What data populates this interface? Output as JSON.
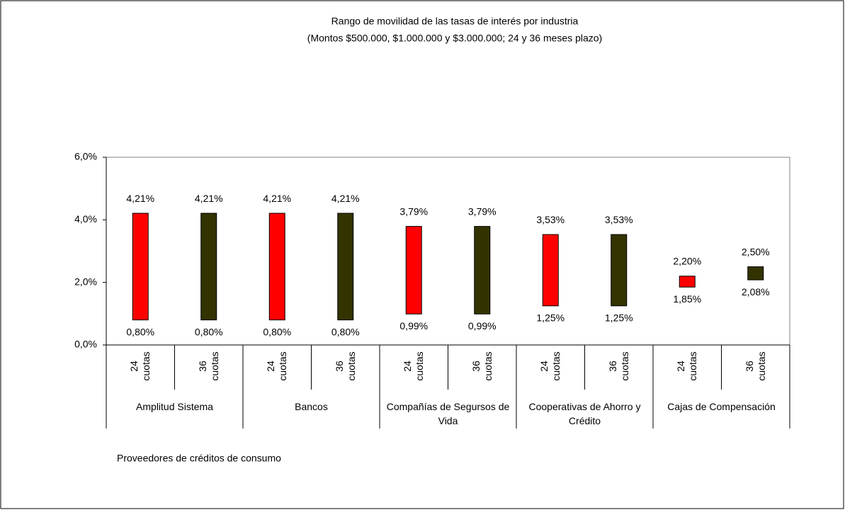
{
  "chart_data": {
    "type": "floating_bar",
    "title": "Rango de movilidad de las tasas de interés por industria",
    "subtitle": "(Montos $500.000, $1.000.000 y $3.000.000; 24 y 36 meses plazo)",
    "x_label": "Proveedores de créditos de consumo",
    "groups": [
      "Amplitud Sistema",
      "Bancos",
      "Compañías de Segursos de Vida",
      "Cooperativas de Ahorro y Crédito",
      "Cajas de Compensación"
    ],
    "categories": [
      "24 cuotas",
      "36 cuotas",
      "24 cuotas",
      "36 cuotas",
      "24 cuotas",
      "36 cuotas",
      "24 cuotas",
      "36 cuotas",
      "24 cuotas",
      "36 cuotas"
    ],
    "low": [
      0.8,
      0.8,
      0.8,
      0.8,
      0.99,
      0.99,
      1.25,
      1.25,
      1.85,
      2.08
    ],
    "high": [
      4.21,
      4.21,
      4.21,
      4.21,
      3.79,
      3.79,
      3.53,
      3.53,
      2.2,
      2.5
    ],
    "low_labels": [
      "0,80%",
      "0,80%",
      "0,80%",
      "0,80%",
      "0,99%",
      "0,99%",
      "1,25%",
      "1,25%",
      "1,85%",
      "2,08%"
    ],
    "high_labels": [
      "4,21%",
      "4,21%",
      "4,21%",
      "4,21%",
      "3,79%",
      "3,79%",
      "3,53%",
      "3,53%",
      "2,20%",
      "2,50%"
    ],
    "colors": [
      "#ff0000",
      "#333300",
      "#ff0000",
      "#333300",
      "#ff0000",
      "#333300",
      "#ff0000",
      "#333300",
      "#ff0000",
      "#333300"
    ],
    "ylim": [
      0,
      6
    ],
    "yticks": [
      {
        "value": 0,
        "label": "0,0%"
      },
      {
        "value": 2,
        "label": "2,0%"
      },
      {
        "value": 4,
        "label": "4,0%"
      },
      {
        "value": 6,
        "label": "6,0%"
      }
    ]
  }
}
